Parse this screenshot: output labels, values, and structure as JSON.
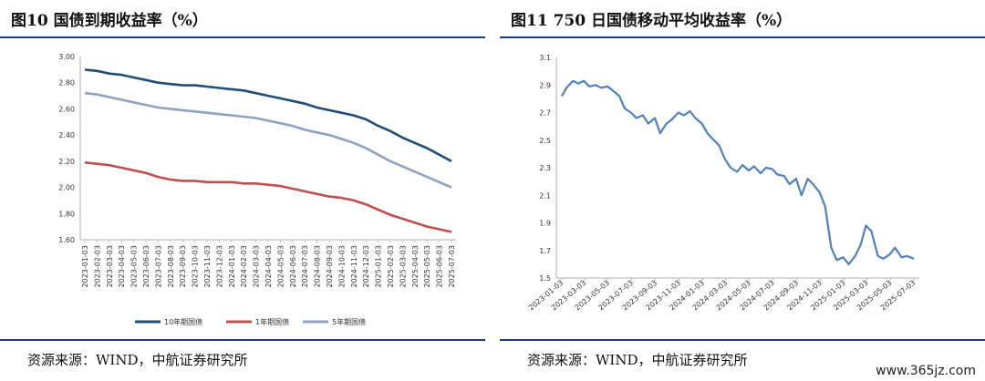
{
  "left": {
    "title": "图10 国债到期收益率（%）",
    "source": "资源来源：WIND，中航证券研究所",
    "chart_data": {
      "type": "line",
      "ylim": [
        1.6,
        3.0
      ],
      "yticks": [
        "3.00",
        "2.80",
        "2.60",
        "2.40",
        "2.20",
        "2.00",
        "1.80",
        "1.60"
      ],
      "x": [
        "2023-01-03",
        "2023-02-03",
        "2023-03-03",
        "2023-04-03",
        "2023-05-03",
        "2023-06-03",
        "2023-07-03",
        "2023-08-03",
        "2023-09-03",
        "2023-10-03",
        "2023-11-03",
        "2023-12-03",
        "2024-01-03",
        "2024-02-03",
        "2024-03-03",
        "2024-04-03",
        "2024-05-03",
        "2024-06-03",
        "2024-07-03",
        "2024-08-03",
        "2024-09-03",
        "2024-10-03",
        "2024-11-03",
        "2024-12-03",
        "2025-01-03",
        "2025-02-03",
        "2025-03-03",
        "2025-04-03",
        "2025-05-03",
        "2025-06-03",
        "2025-07-03"
      ],
      "series": [
        {
          "name": "10年期国债",
          "color": "#1f4e79",
          "values": [
            2.9,
            2.89,
            2.87,
            2.86,
            2.84,
            2.82,
            2.8,
            2.79,
            2.78,
            2.78,
            2.77,
            2.76,
            2.75,
            2.74,
            2.72,
            2.7,
            2.68,
            2.66,
            2.64,
            2.61,
            2.59,
            2.57,
            2.55,
            2.52,
            2.47,
            2.43,
            2.38,
            2.34,
            2.3,
            2.25,
            2.2
          ]
        },
        {
          "name": "1年期国债",
          "color": "#c0504d",
          "values": [
            2.19,
            2.18,
            2.17,
            2.15,
            2.13,
            2.11,
            2.08,
            2.06,
            2.05,
            2.05,
            2.04,
            2.04,
            2.04,
            2.03,
            2.03,
            2.02,
            2.01,
            1.99,
            1.97,
            1.95,
            1.93,
            1.92,
            1.9,
            1.87,
            1.83,
            1.79,
            1.76,
            1.73,
            1.7,
            1.68,
            1.66
          ]
        },
        {
          "name": "5年期国债",
          "color": "#8ea2c4",
          "values": [
            2.72,
            2.71,
            2.69,
            2.67,
            2.65,
            2.63,
            2.61,
            2.6,
            2.59,
            2.58,
            2.57,
            2.56,
            2.55,
            2.54,
            2.53,
            2.51,
            2.49,
            2.47,
            2.44,
            2.42,
            2.4,
            2.37,
            2.34,
            2.3,
            2.25,
            2.2,
            2.16,
            2.12,
            2.08,
            2.04,
            2.0
          ]
        }
      ]
    }
  },
  "right": {
    "title": "图11 750 日国债移动平均收益率（%）",
    "source": "资源来源：WIND，中航证券研究所",
    "chart_data": {
      "type": "line",
      "ylim": [
        1.5,
        3.1
      ],
      "yticks": [
        "3.1",
        "2.9",
        "2.7",
        "2.5",
        "2.3",
        "2.1",
        "1.9",
        "1.7",
        "1.5"
      ],
      "x": [
        "2023-01-03",
        "2023-03-03",
        "2023-05-03",
        "2023-07-03",
        "2023-09-03",
        "2023-11-03",
        "2024-01-03",
        "2024-03-03",
        "2024-05-03",
        "2024-07-03",
        "2024-09-03",
        "2024-11-03",
        "2025-01-03",
        "2025-03-03",
        "2025-05-03",
        "2025-07-03"
      ],
      "series": [
        {
          "name": "",
          "color": "#4f81bd",
          "points": [
            [
              "2023-01-03",
              2.82
            ],
            [
              "2023-01-15",
              2.88
            ],
            [
              "2023-02-01",
              2.93
            ],
            [
              "2023-02-15",
              2.91
            ],
            [
              "2023-03-01",
              2.93
            ],
            [
              "2023-03-15",
              2.89
            ],
            [
              "2023-04-01",
              2.9
            ],
            [
              "2023-04-15",
              2.88
            ],
            [
              "2023-05-01",
              2.89
            ],
            [
              "2023-05-15",
              2.86
            ],
            [
              "2023-06-01",
              2.82
            ],
            [
              "2023-06-15",
              2.73
            ],
            [
              "2023-07-01",
              2.7
            ],
            [
              "2023-07-15",
              2.66
            ],
            [
              "2023-08-01",
              2.68
            ],
            [
              "2023-08-15",
              2.62
            ],
            [
              "2023-09-01",
              2.66
            ],
            [
              "2023-09-15",
              2.55
            ],
            [
              "2023-10-01",
              2.62
            ],
            [
              "2023-10-15",
              2.65
            ],
            [
              "2023-11-01",
              2.7
            ],
            [
              "2023-11-15",
              2.68
            ],
            [
              "2023-12-01",
              2.71
            ],
            [
              "2023-12-15",
              2.66
            ],
            [
              "2024-01-01",
              2.62
            ],
            [
              "2024-01-15",
              2.55
            ],
            [
              "2024-02-01",
              2.5
            ],
            [
              "2024-02-15",
              2.46
            ],
            [
              "2024-03-01",
              2.36
            ],
            [
              "2024-03-15",
              2.3
            ],
            [
              "2024-04-01",
              2.27
            ],
            [
              "2024-04-15",
              2.32
            ],
            [
              "2024-05-01",
              2.28
            ],
            [
              "2024-05-15",
              2.31
            ],
            [
              "2024-06-01",
              2.26
            ],
            [
              "2024-06-15",
              2.3
            ],
            [
              "2024-07-01",
              2.29
            ],
            [
              "2024-07-15",
              2.25
            ],
            [
              "2024-08-01",
              2.24
            ],
            [
              "2024-08-15",
              2.18
            ],
            [
              "2024-09-01",
              2.22
            ],
            [
              "2024-09-15",
              2.1
            ],
            [
              "2024-10-01",
              2.22
            ],
            [
              "2024-10-15",
              2.18
            ],
            [
              "2024-11-01",
              2.12
            ],
            [
              "2024-11-15",
              2.02
            ],
            [
              "2024-12-01",
              1.72
            ],
            [
              "2024-12-15",
              1.63
            ],
            [
              "2025-01-01",
              1.65
            ],
            [
              "2025-01-15",
              1.6
            ],
            [
              "2025-02-01",
              1.66
            ],
            [
              "2025-02-15",
              1.74
            ],
            [
              "2025-03-01",
              1.88
            ],
            [
              "2025-03-15",
              1.84
            ],
            [
              "2025-04-01",
              1.66
            ],
            [
              "2025-04-15",
              1.64
            ],
            [
              "2025-05-01",
              1.67
            ],
            [
              "2025-05-15",
              1.72
            ],
            [
              "2025-06-01",
              1.65
            ],
            [
              "2025-06-15",
              1.66
            ],
            [
              "2025-07-03",
              1.64
            ]
          ]
        }
      ]
    }
  },
  "watermark": "www.365jz.com"
}
